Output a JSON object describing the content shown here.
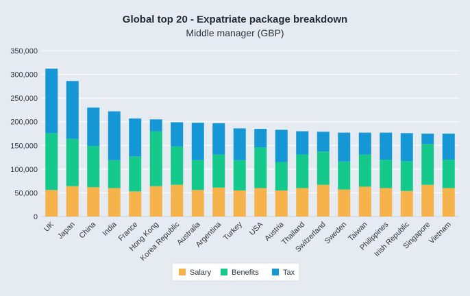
{
  "chart_data": {
    "type": "bar",
    "title": "Global top 20 - Expatriate package breakdown",
    "subtitle": "Middle manager (GBP)",
    "categories": [
      "UK",
      "Japan",
      "China",
      "India",
      "France",
      "Hong Kong",
      "Korea Republic",
      "Australia",
      "Argentina",
      "Turkey",
      "USA",
      "Austria",
      "Thailand",
      "Switzerland",
      "Sweden",
      "Taiwan",
      "Philippines",
      "Irish Republic",
      "Singapore",
      "Vietnam"
    ],
    "series": [
      {
        "name": "Salary",
        "color": "#f6b24b",
        "values": [
          56000,
          64000,
          62000,
          60000,
          53000,
          64000,
          67000,
          56000,
          61000,
          55000,
          60000,
          55000,
          60000,
          67000,
          57000,
          63000,
          60000,
          54000,
          67000,
          60000
        ]
      },
      {
        "name": "Benefits",
        "color": "#14c98b",
        "values": [
          120000,
          100000,
          87000,
          59000,
          74000,
          116000,
          81000,
          63000,
          70000,
          64000,
          86000,
          60000,
          71000,
          70000,
          59000,
          68000,
          60000,
          63000,
          86000,
          60000
        ]
      },
      {
        "name": "Tax",
        "color": "#1597d5",
        "values": [
          136000,
          122000,
          81000,
          103000,
          80000,
          25000,
          51000,
          79000,
          66000,
          67000,
          39000,
          68000,
          49000,
          42000,
          61000,
          46000,
          57000,
          59000,
          22000,
          55000
        ]
      }
    ],
    "ylim": [
      0,
      350000
    ],
    "yticks": [
      0,
      50000,
      100000,
      150000,
      200000,
      250000,
      300000,
      350000
    ],
    "ytick_labels": [
      "0",
      "50,000",
      "100,000",
      "150,000",
      "200,000",
      "250,000",
      "300,000",
      "350,000"
    ],
    "grid": true,
    "legend_position": "bottom-center",
    "stacked": true
  }
}
